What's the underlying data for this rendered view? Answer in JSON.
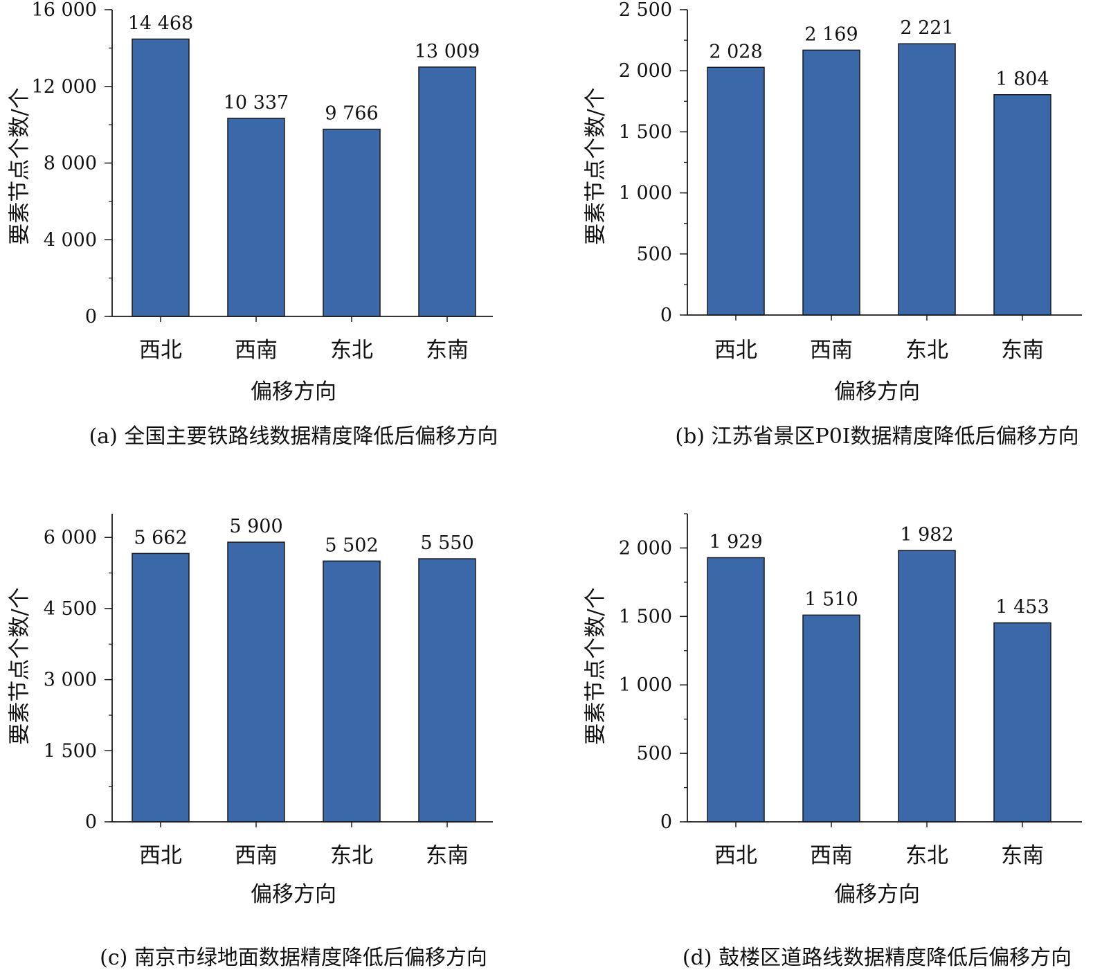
{
  "colors": {
    "bar": "#3a68a8",
    "bar_edge": "#1a1a1a",
    "axis": "#1a1a1a"
  },
  "chart_data": [
    {
      "type": "bar",
      "caption": "(a) 全国主要铁路线数据精度降低后偏移方向",
      "xlabel": "偏移方向",
      "ylabel": "要素节点个数/个",
      "categories": [
        "西北",
        "西南",
        "东北",
        "东南"
      ],
      "values": [
        14468,
        10337,
        9766,
        13009
      ],
      "value_labels": [
        "14 468",
        "10 337",
        "9 766",
        "13 009"
      ],
      "ylim": [
        0,
        16000
      ],
      "yticks": [
        0,
        4000,
        8000,
        12000,
        16000
      ],
      "ytick_labels": [
        "0",
        "4 000",
        "8 000",
        "12 000",
        "16 000"
      ],
      "minor_step": 2000,
      "grid": false,
      "legend": "none"
    },
    {
      "type": "bar",
      "caption": "(b) 江苏省景区P0I数据精度降低后偏移方向",
      "xlabel": "偏移方向",
      "ylabel": "要素节点个数/个",
      "categories": [
        "西北",
        "西南",
        "东北",
        "东南"
      ],
      "values": [
        2028,
        2169,
        2221,
        1804
      ],
      "value_labels": [
        "2 028",
        "2 169",
        "2 221",
        "1 804"
      ],
      "ylim": [
        0,
        2500
      ],
      "yticks": [
        0,
        500,
        1000,
        1500,
        2000,
        2500
      ],
      "ytick_labels": [
        "0",
        "500",
        "1 000",
        "1 500",
        "2 000",
        "2 500"
      ],
      "minor_step": 250,
      "grid": false,
      "legend": "none"
    },
    {
      "type": "bar",
      "caption": "(c) 南京市绿地面数据精度降低后偏移方向",
      "xlabel": "偏移方向",
      "ylabel": "要素节点个数/个",
      "categories": [
        "西北",
        "西南",
        "东北",
        "东南"
      ],
      "values": [
        5662,
        5900,
        5502,
        5550
      ],
      "value_labels": [
        "5 662",
        "5 900",
        "5 502",
        "5 550"
      ],
      "ylim": [
        0,
        6500
      ],
      "yticks": [
        0,
        1500,
        3000,
        4500,
        6000
      ],
      "ytick_labels": [
        "0",
        "1 500",
        "3 000",
        "4 500",
        "6 000"
      ],
      "minor_step": 750,
      "grid": false,
      "legend": "none"
    },
    {
      "type": "bar",
      "caption": "(d) 鼓楼区道路线数据精度降低后偏移方向",
      "xlabel": "偏移方向",
      "ylabel": "要素节点个数/个",
      "categories": [
        "西北",
        "西南",
        "东北",
        "东南"
      ],
      "values": [
        1929,
        1510,
        1982,
        1453
      ],
      "value_labels": [
        "1 929",
        "1 510",
        "1 982",
        "1 453"
      ],
      "ylim": [
        0,
        2250
      ],
      "yticks": [
        0,
        500,
        1000,
        1500,
        2000
      ],
      "ytick_labels": [
        "0",
        "500",
        "1 000",
        "1 500",
        "2 000"
      ],
      "minor_step": 250,
      "grid": false,
      "legend": "none"
    }
  ]
}
